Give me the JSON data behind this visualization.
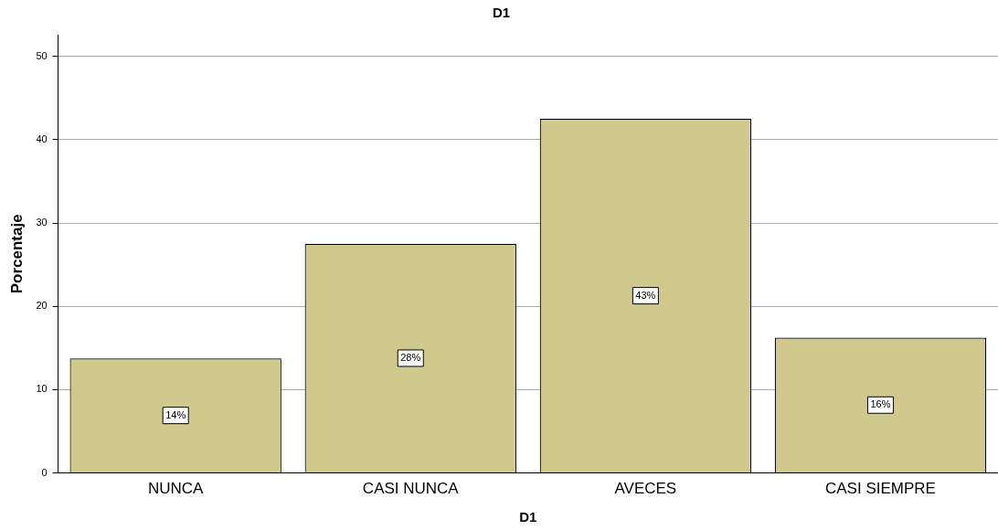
{
  "chart_data": {
    "type": "bar",
    "title": "D1",
    "xlabel": "D1",
    "ylabel": "Porcentaje",
    "categories": [
      "NUNCA",
      "CASI NUNCA",
      "AVECES",
      "CASI SIEMPRE"
    ],
    "values": [
      13.75,
      27.5,
      42.5,
      16.25
    ],
    "value_labels": [
      "14%",
      "28%",
      "43%",
      "16%"
    ],
    "color": "#cfc98e",
    "ylim": [
      0,
      52.6
    ],
    "yticks": [
      0,
      10,
      20,
      30,
      40,
      50
    ],
    "grid": "y",
    "legend": false
  }
}
